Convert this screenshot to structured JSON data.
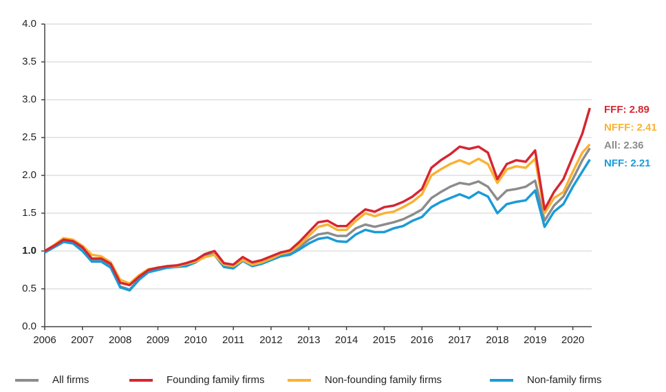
{
  "chart_data": {
    "type": "line",
    "x": [
      2006,
      2006.25,
      2006.5,
      2006.75,
      2007,
      2007.25,
      2007.5,
      2007.75,
      2008,
      2008.25,
      2008.5,
      2008.75,
      2009,
      2009.25,
      2009.5,
      2009.75,
      2010,
      2010.25,
      2010.5,
      2010.75,
      2011,
      2011.25,
      2011.5,
      2011.75,
      2012,
      2012.25,
      2012.5,
      2012.75,
      2013,
      2013.25,
      2013.5,
      2013.75,
      2014,
      2014.25,
      2014.5,
      2014.75,
      2015,
      2015.25,
      2015.5,
      2015.75,
      2016,
      2016.25,
      2016.5,
      2016.75,
      2017,
      2017.25,
      2017.5,
      2017.75,
      2018,
      2018.25,
      2018.5,
      2018.75,
      2019,
      2019.25,
      2019.5,
      2019.75,
      2020,
      2020.25,
      2020.45
    ],
    "series": [
      {
        "name": "All firms",
        "color": "#8c8c8c",
        "values": [
          1.0,
          1.07,
          1.14,
          1.12,
          1.03,
          0.88,
          0.88,
          0.8,
          0.53,
          0.49,
          0.63,
          0.73,
          0.76,
          0.79,
          0.8,
          0.82,
          0.86,
          0.94,
          0.96,
          0.8,
          0.79,
          0.88,
          0.82,
          0.85,
          0.9,
          0.95,
          0.97,
          1.05,
          1.15,
          1.22,
          1.24,
          1.2,
          1.2,
          1.3,
          1.35,
          1.32,
          1.35,
          1.38,
          1.42,
          1.48,
          1.55,
          1.7,
          1.78,
          1.85,
          1.9,
          1.88,
          1.92,
          1.85,
          1.68,
          1.8,
          1.82,
          1.85,
          1.93,
          1.4,
          1.6,
          1.72,
          1.95,
          2.2,
          2.36
        ]
      },
      {
        "name": "Founding family firms",
        "color": "#d62631",
        "values": [
          1.0,
          1.07,
          1.15,
          1.13,
          1.05,
          0.9,
          0.9,
          0.83,
          0.58,
          0.55,
          0.66,
          0.75,
          0.78,
          0.8,
          0.81,
          0.84,
          0.88,
          0.96,
          1.0,
          0.84,
          0.82,
          0.92,
          0.85,
          0.88,
          0.93,
          0.98,
          1.01,
          1.12,
          1.25,
          1.38,
          1.4,
          1.33,
          1.33,
          1.45,
          1.55,
          1.52,
          1.58,
          1.6,
          1.65,
          1.72,
          1.82,
          2.1,
          2.2,
          2.28,
          2.38,
          2.35,
          2.38,
          2.3,
          1.95,
          2.15,
          2.2,
          2.18,
          2.33,
          1.55,
          1.78,
          1.95,
          2.25,
          2.55,
          2.89
        ]
      },
      {
        "name": "Non-founding family firms",
        "color": "#f9b233",
        "values": [
          1.0,
          1.08,
          1.17,
          1.15,
          1.07,
          0.95,
          0.93,
          0.85,
          0.62,
          0.57,
          0.68,
          0.76,
          0.78,
          0.8,
          0.8,
          0.83,
          0.86,
          0.92,
          0.95,
          0.82,
          0.8,
          0.88,
          0.82,
          0.85,
          0.9,
          0.96,
          0.99,
          1.08,
          1.2,
          1.32,
          1.35,
          1.28,
          1.28,
          1.4,
          1.5,
          1.46,
          1.5,
          1.52,
          1.58,
          1.65,
          1.75,
          2.0,
          2.08,
          2.15,
          2.2,
          2.15,
          2.22,
          2.15,
          1.9,
          2.08,
          2.12,
          2.1,
          2.22,
          1.5,
          1.7,
          1.78,
          2.05,
          2.3,
          2.41
        ]
      },
      {
        "name": "Non-family firms",
        "color": "#1a9bd7",
        "values": [
          0.98,
          1.05,
          1.12,
          1.1,
          1.0,
          0.86,
          0.86,
          0.78,
          0.52,
          0.48,
          0.62,
          0.72,
          0.75,
          0.78,
          0.79,
          0.8,
          0.85,
          0.93,
          0.95,
          0.79,
          0.77,
          0.87,
          0.8,
          0.83,
          0.88,
          0.93,
          0.95,
          1.02,
          1.1,
          1.16,
          1.18,
          1.13,
          1.12,
          1.22,
          1.28,
          1.25,
          1.25,
          1.3,
          1.33,
          1.4,
          1.45,
          1.58,
          1.65,
          1.7,
          1.75,
          1.7,
          1.78,
          1.72,
          1.5,
          1.62,
          1.65,
          1.67,
          1.8,
          1.32,
          1.52,
          1.62,
          1.85,
          2.05,
          2.21
        ]
      }
    ],
    "annotations": [
      {
        "text": "FFF: 2.89",
        "color": "#d62631"
      },
      {
        "text": "NFFF: 2.41",
        "color": "#f9b233"
      },
      {
        "text": "All: 2.36",
        "color": "#8c8c8c"
      },
      {
        "text": "NFF: 2.21",
        "color": "#1a9bd7"
      }
    ],
    "xlim": [
      2006,
      2020.5
    ],
    "xticks": [
      2006,
      2007,
      2008,
      2009,
      2010,
      2011,
      2012,
      2013,
      2014,
      2015,
      2016,
      2017,
      2018,
      2019,
      2020
    ],
    "ylim": [
      0,
      4
    ],
    "yticks": [
      {
        "value": 0,
        "label": "0.0"
      },
      0.5,
      {
        "value": 1,
        "label": "1.0"
      },
      1.5,
      {
        "value": 2,
        "label": "2.0"
      },
      2.5,
      {
        "value": 3,
        "label": "3.0"
      },
      3.5,
      {
        "value": 4,
        "label": "4.0"
      }
    ],
    "grid": true,
    "legend": "bottom"
  }
}
